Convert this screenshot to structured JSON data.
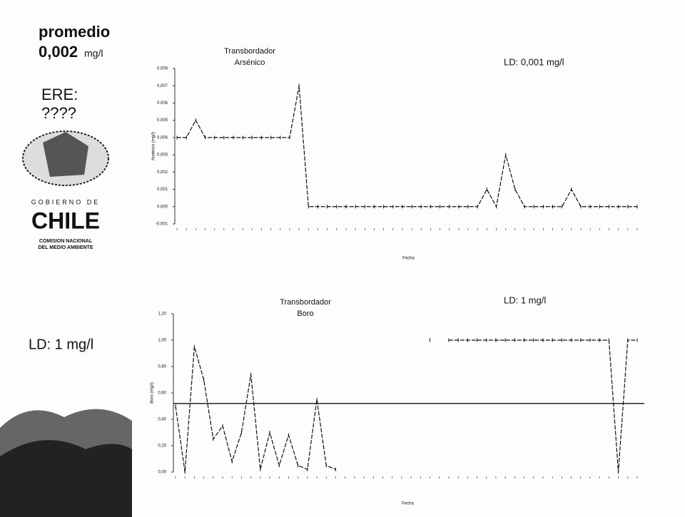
{
  "sidebar": {
    "average_label": "promedio",
    "average_value": "0,002",
    "average_unit": "mg/l",
    "ere_label": "ERE:",
    "ere_value": "????",
    "logo_line1": "GOBIERNO DE",
    "logo_line2": "CHILE",
    "logo_line3": "COMISION NACIONAL",
    "logo_line4": "DEL MEDIO AMBIENTE",
    "ld": "LD:  1 mg/l"
  },
  "chart_data": [
    {
      "type": "line",
      "title": "Transbordador",
      "subtitle": "Arsénico",
      "annotation": "LD:  0,001 mg/l",
      "y_label": "Arsénico (mg/l)",
      "x_label": "Fecha",
      "categories": [
        null,
        null,
        null,
        null,
        null,
        null,
        null,
        null,
        null,
        null,
        null,
        null,
        null,
        null,
        null,
        null,
        null,
        null,
        null,
        null,
        null,
        null,
        null,
        null,
        null,
        null,
        null,
        null,
        null,
        null,
        null,
        null,
        null,
        null,
        null,
        null,
        null,
        null,
        null,
        null,
        null,
        null,
        null,
        null,
        null,
        null,
        null,
        null,
        null,
        null
      ],
      "series": [
        {
          "color": "#111111",
          "values": [
            0.004,
            0.004,
            0.005,
            0.004,
            0.004,
            0.004,
            0.004,
            0.004,
            0.004,
            0.004,
            0.004,
            0.004,
            0.004,
            0.007,
            0,
            0,
            0,
            0,
            0,
            0,
            0,
            0,
            0,
            0,
            0,
            0,
            0,
            0,
            0,
            0,
            0,
            0,
            0,
            0.001,
            0,
            0.003,
            0.001,
            0,
            0,
            0,
            0,
            0,
            0.001,
            0,
            0,
            0,
            0,
            0,
            0,
            0
          ]
        }
      ],
      "ylim": [
        -0.001,
        0.008
      ],
      "yticks": [
        {
          "value": -0.001,
          "label": "-0,001"
        },
        {
          "value": 0,
          "label": "0,000"
        },
        {
          "value": 0.001,
          "label": "0,001"
        },
        {
          "value": 0.002,
          "label": "0,002"
        },
        {
          "value": 0.003,
          "label": "0,003"
        },
        {
          "value": 0.004,
          "label": "0,004"
        },
        {
          "value": 0.005,
          "label": "0,005"
        },
        {
          "value": 0.006,
          "label": "0,006"
        },
        {
          "value": 0.007,
          "label": "0,007"
        },
        {
          "value": 0.008,
          "label": "0,008"
        }
      ],
      "grid": false
    },
    {
      "type": "line",
      "title": "Transbordador",
      "subtitle": "Boro",
      "annotation": "LD:  1 mg/l",
      "y_label": "Boro (mg/l)",
      "x_label": "Fecha",
      "categories": [
        null,
        null,
        null,
        null,
        null,
        null,
        null,
        null,
        null,
        null,
        null,
        null,
        null,
        null,
        null,
        null,
        null,
        null,
        null,
        null,
        null,
        null,
        null,
        null,
        null,
        null,
        null,
        null,
        null,
        null,
        null,
        null,
        null,
        null,
        null,
        null,
        null,
        null,
        null,
        null,
        null,
        null,
        null,
        null,
        null,
        null,
        null,
        null,
        null,
        null
      ],
      "series": [
        {
          "color": "#111111",
          "values": [
            0.5,
            0,
            0.95,
            0.7,
            0.25,
            0.35,
            0.08,
            0.3,
            0.74,
            0.02,
            0.3,
            0.05,
            0.28,
            0.05,
            0.02,
            0.55,
            0.05,
            0.02,
            null,
            null,
            null,
            null,
            null,
            null,
            null,
            null,
            null,
            1,
            null,
            1,
            1,
            1,
            1,
            1,
            1,
            1,
            1,
            1,
            1,
            1,
            1,
            1,
            1,
            1,
            1,
            1,
            1,
            0,
            1,
            1
          ]
        }
      ],
      "reference_line": 0.52,
      "ylim": [
        0,
        1.2
      ],
      "yticks": [
        {
          "value": 0,
          "label": "0,00"
        },
        {
          "value": 0.2,
          "label": "0,20"
        },
        {
          "value": 0.4,
          "label": "0,40"
        },
        {
          "value": 0.6,
          "label": "0,60"
        },
        {
          "value": 0.8,
          "label": "0,80"
        },
        {
          "value": 1,
          "label": "1,00"
        },
        {
          "value": 1.2,
          "label": "1,20"
        }
      ],
      "grid": false
    }
  ]
}
